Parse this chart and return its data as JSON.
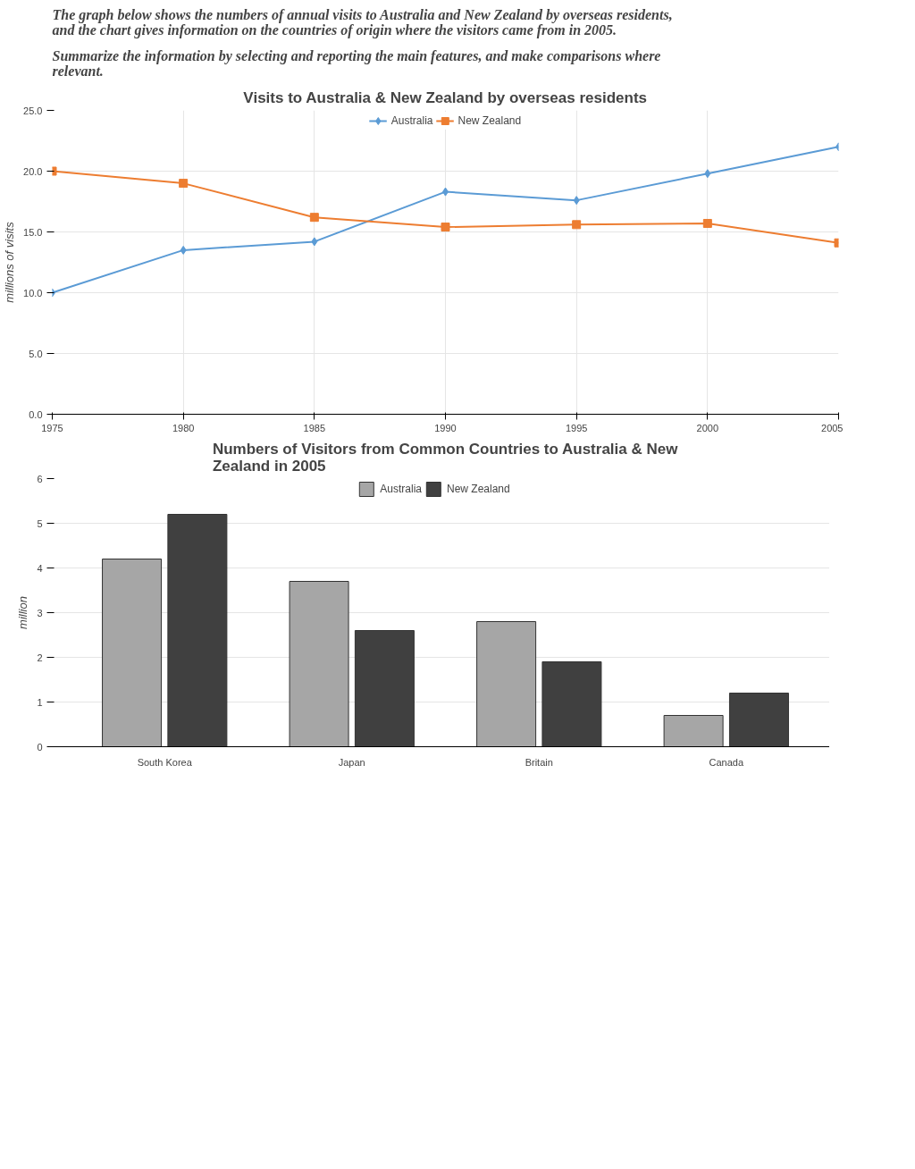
{
  "chart_data": [
    {
      "type": "line",
      "title": "Visits to Australia & New Zealand by overseas residents",
      "ylabel": "millions of visits",
      "annotations": [
        "The graph below shows the numbers of annual visits to Australia and New Zealand by overseas residents, and the chart gives information on the countries of origin where the visitors came from in 2005.",
        "Summarize the information by selecting and reporting the main features, and make comparisons where relevant."
      ],
      "x": [
        1975,
        1980,
        1985,
        1990,
        1995,
        2000,
        2005
      ],
      "series": [
        {
          "name": "Australia",
          "color": "#5b9bd5",
          "marker": "diamond",
          "values": [
            10.0,
            13.5,
            14.2,
            18.3,
            17.6,
            19.8,
            22.0
          ]
        },
        {
          "name": "New Zealand",
          "color": "#ed7d31",
          "marker": "square",
          "values": [
            20.0,
            19.0,
            16.2,
            15.4,
            15.6,
            15.7,
            14.1
          ]
        }
      ],
      "xlim": [
        1975,
        2005
      ],
      "xticks": [
        1975,
        1980,
        1985,
        1990,
        1995,
        2000,
        2005
      ],
      "ylim": [
        0,
        25
      ],
      "yticks": [
        {
          "value": 0,
          "label": "0.0"
        },
        {
          "value": 5,
          "label": "5.0"
        },
        {
          "value": 10,
          "label": "10.0"
        },
        {
          "value": 15,
          "label": "15.0"
        },
        {
          "value": 20,
          "label": "20.0"
        },
        {
          "value": 25,
          "label": "25.0"
        }
      ],
      "grid": true,
      "legend": "top"
    },
    {
      "type": "bar",
      "title": "Numbers of Visitors from Common Countries to Australia & New Zealand in 2005",
      "ylabel": "million",
      "categories": [
        "South Korea",
        "Japan",
        "Britain",
        "Canada"
      ],
      "series": [
        {
          "name": "Australia",
          "color": "#a6a6a6",
          "values": [
            4.2,
            3.7,
            2.8,
            0.7
          ]
        },
        {
          "name": "New Zealand",
          "color": "#404040",
          "values": [
            5.2,
            2.6,
            1.9,
            1.2
          ]
        }
      ],
      "ylim": [
        0,
        6
      ],
      "yticks": [
        0,
        1,
        2,
        3,
        4,
        5,
        6
      ],
      "grid": "y",
      "legend": "top"
    }
  ]
}
